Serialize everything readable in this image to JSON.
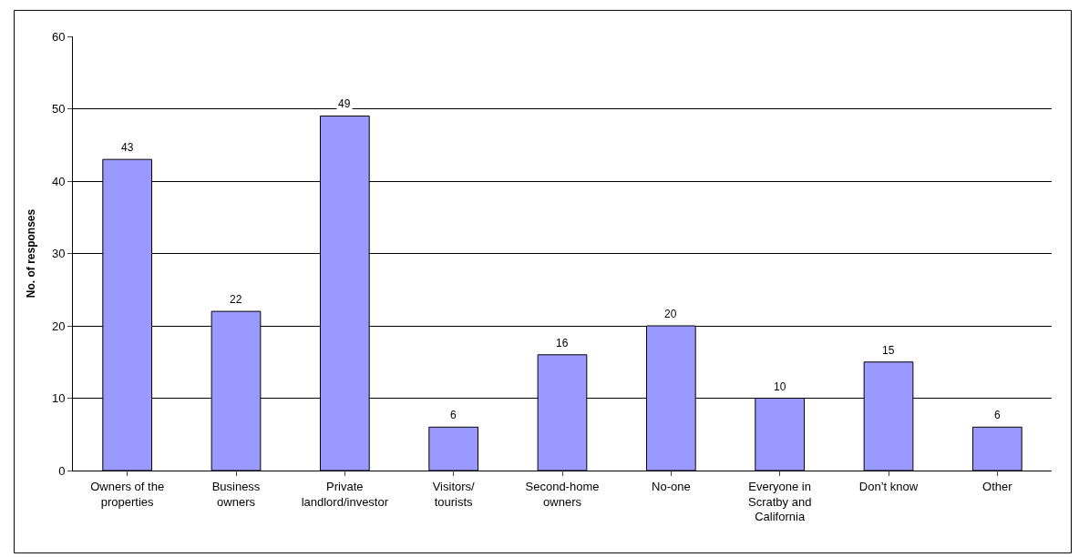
{
  "chart_data": {
    "type": "bar",
    "ylabel": "No. of responses",
    "categories": [
      "Owners of the properties",
      "Business owners",
      "Private landlord/investor",
      "Visitors/ tourists",
      "Second-home owners",
      "No-one",
      "Everyone in Scratby and California",
      "Don’t know",
      "Other"
    ],
    "values": [
      43,
      22,
      49,
      6,
      16,
      20,
      10,
      15,
      6
    ],
    "color": "#9999ff",
    "ylim": [
      0,
      60
    ],
    "yticks": [
      0,
      10,
      20,
      30,
      40,
      50,
      60
    ],
    "grid": "y",
    "data_labels": true
  }
}
